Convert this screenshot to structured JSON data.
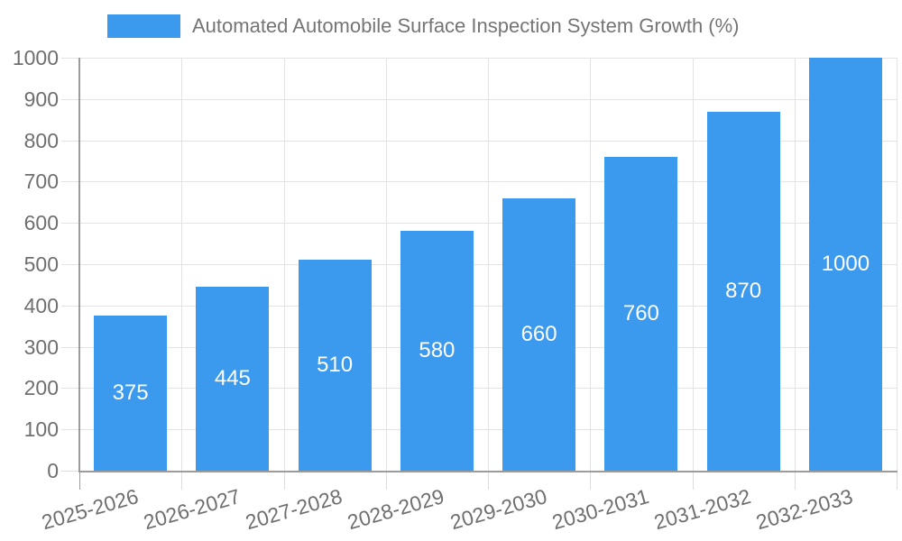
{
  "chart_data": {
    "type": "bar",
    "title": "Automated Automobile Surface Inspection System Growth (%)",
    "legend": {
      "label": "Automated Automobile Surface Inspection System Growth (%)",
      "position": "top-left"
    },
    "categories": [
      "2025-2026",
      "2026-2027",
      "2027-2028",
      "2028-2029",
      "2029-2030",
      "2030-2031",
      "2031-2032",
      "2032-2033"
    ],
    "values": [
      375,
      445,
      510,
      580,
      660,
      760,
      870,
      1000
    ],
    "value_labels": [
      "375",
      "445",
      "510",
      "580",
      "660",
      "760",
      "870",
      "1000"
    ],
    "xlabel": "",
    "ylabel": "",
    "ylim": [
      0,
      1000
    ],
    "ytick_interval": 100,
    "ytick_labels": [
      "0",
      "100",
      "200",
      "300",
      "400",
      "500",
      "600",
      "700",
      "800",
      "900",
      "1000"
    ],
    "grid": "horizontal and vertical gridlines on",
    "x_label_rotation_deg": -16,
    "colors": {
      "bar": "#3B9AED",
      "grid": "#E3E3E3",
      "tick": "#DCDCDC",
      "axis": "#9B9B9B",
      "axis_text": "#6F6F6F",
      "title_text": "#757575",
      "value_label_text": "#FFFFFF",
      "background": "#FFFFFF"
    }
  }
}
